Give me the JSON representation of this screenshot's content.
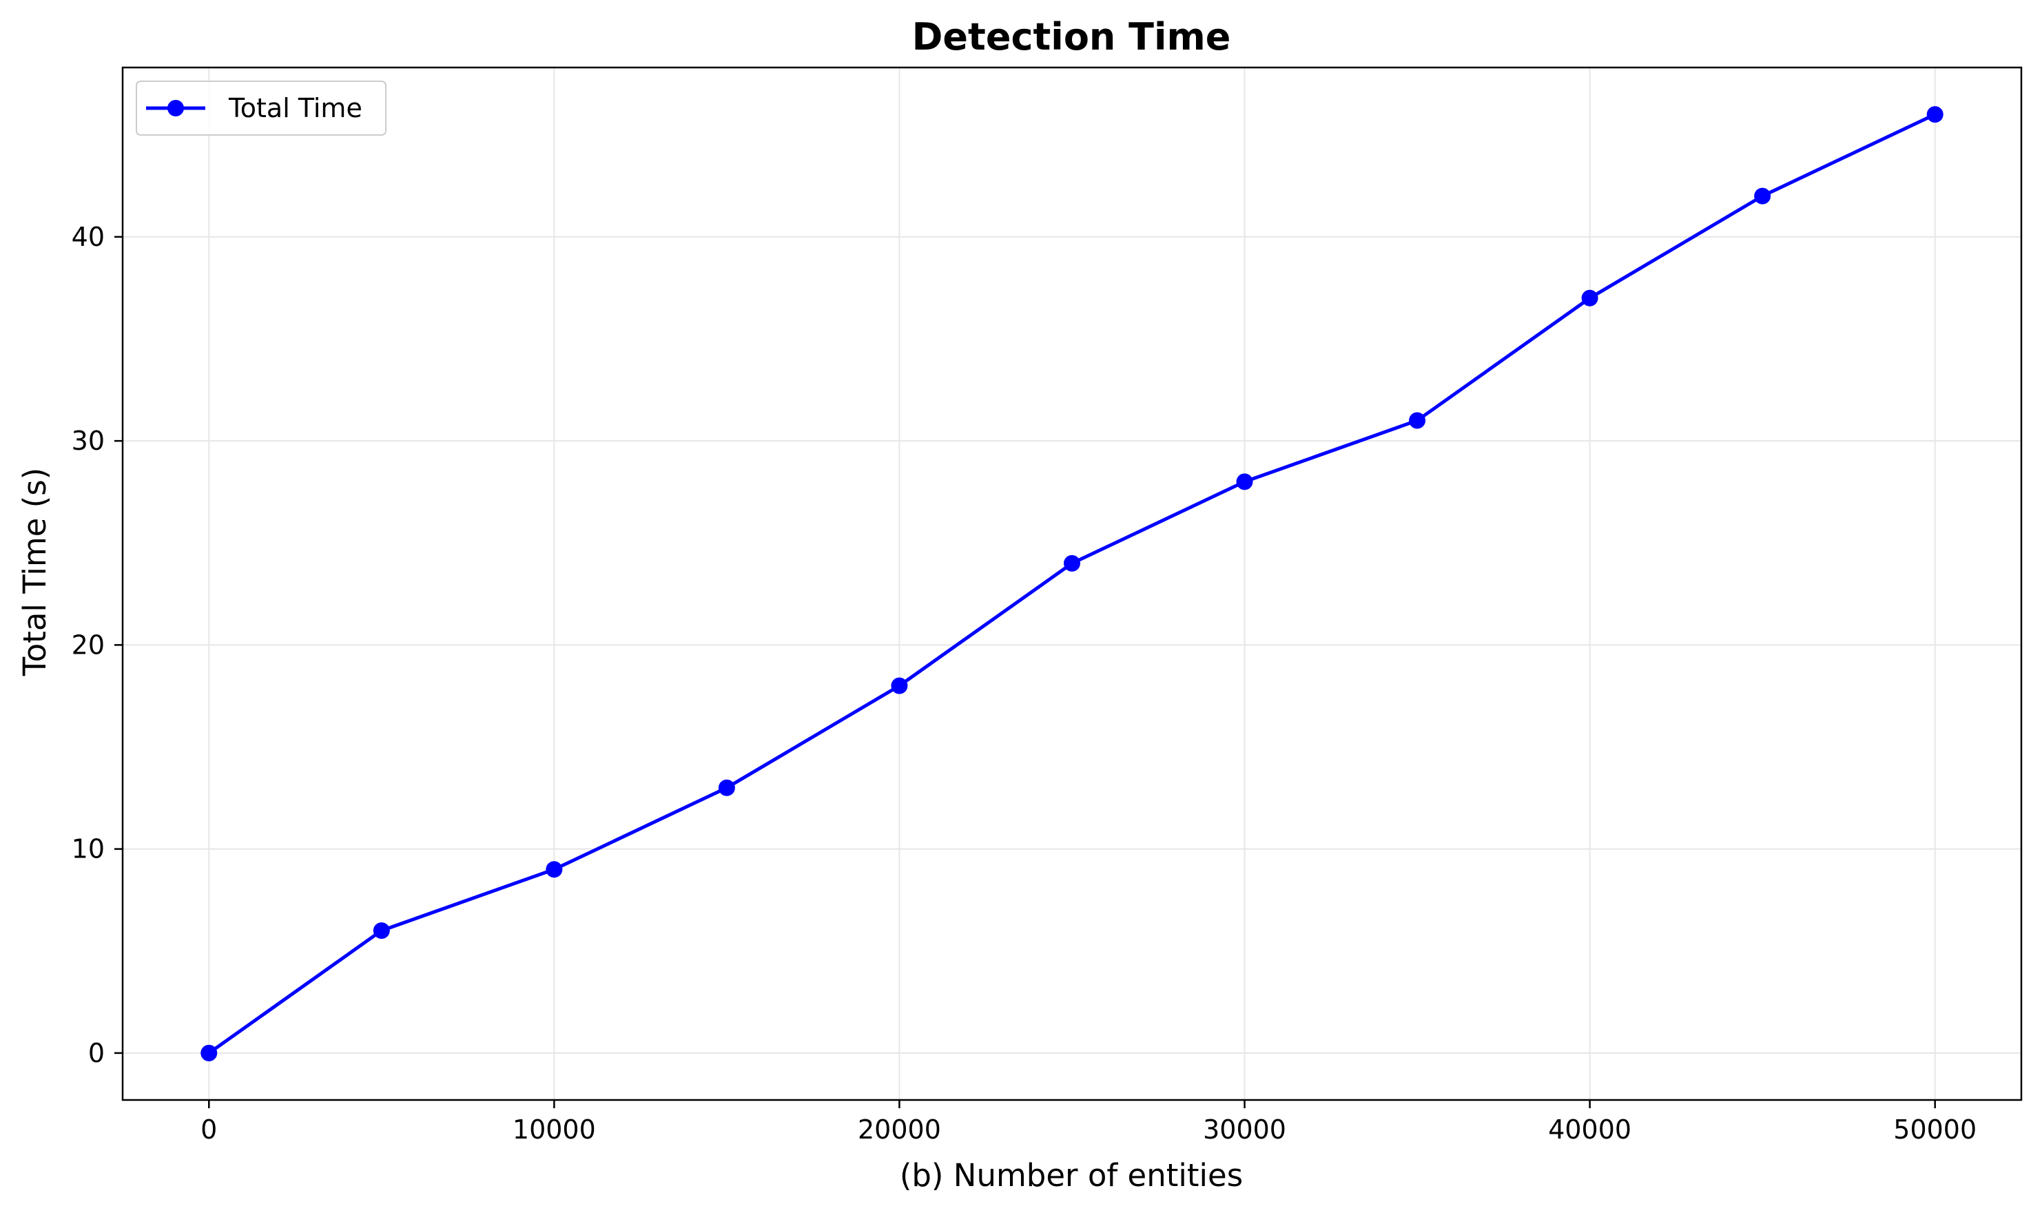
{
  "chart_data": {
    "type": "line",
    "title": "Detection Time",
    "xlabel": "(b) Number of entities",
    "ylabel": "Total Time (s)",
    "xlim": [
      -2500,
      52500
    ],
    "ylim": [
      -2.3,
      48.3
    ],
    "xticks": [
      0,
      10000,
      20000,
      30000,
      40000,
      50000
    ],
    "yticks": [
      0,
      10,
      20,
      30,
      40
    ],
    "grid": true,
    "legend_position": "top-left",
    "series": [
      {
        "name": "Total Time",
        "color": "#0000ff",
        "marker": "circle",
        "x": [
          0,
          5000,
          10000,
          15000,
          20000,
          25000,
          30000,
          35000,
          40000,
          45000,
          50000
        ],
        "y": [
          0,
          6,
          9,
          13,
          18,
          24,
          28,
          31,
          37,
          42,
          46
        ]
      }
    ]
  }
}
